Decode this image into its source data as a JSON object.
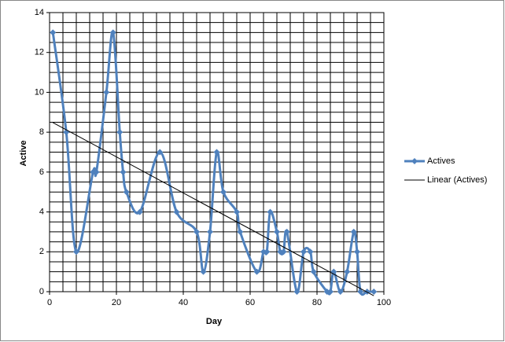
{
  "chart_data": {
    "type": "scatter_smooth",
    "x_label": "Day",
    "y_label": "Active",
    "series": [
      {
        "name": "Actives",
        "color": "#4f81bd",
        "x": [
          1,
          5,
          8,
          13,
          14,
          17,
          19,
          21,
          22,
          23,
          27,
          33,
          38,
          44,
          46,
          48,
          50,
          52,
          56,
          57,
          62,
          64,
          65,
          66,
          68,
          69,
          70,
          71,
          74,
          76,
          78,
          79,
          83,
          84,
          85,
          87,
          89,
          91,
          92,
          93,
          95,
          97
        ],
        "values": [
          13,
          8,
          2,
          6,
          6,
          10,
          13,
          8,
          6,
          5,
          4,
          7,
          4,
          3,
          1,
          3,
          7,
          5,
          4,
          3,
          1,
          2,
          2,
          4,
          3,
          2,
          2,
          3,
          0,
          2,
          2,
          1,
          0,
          0,
          1,
          0,
          1,
          3,
          2,
          0,
          0,
          0
        ]
      }
    ],
    "trendline": {
      "name": "Linear (Actives)",
      "color": "#000000"
    },
    "xlim": [
      0,
      100
    ],
    "xticks": [
      0,
      20,
      40,
      60,
      80,
      100
    ],
    "ylim": [
      0,
      14
    ],
    "yticks": [
      0,
      2,
      4,
      6,
      8,
      10,
      12,
      14
    ],
    "grid": true,
    "xgrid_step": 4,
    "ygrid_step": 0.5,
    "legend": "right"
  }
}
